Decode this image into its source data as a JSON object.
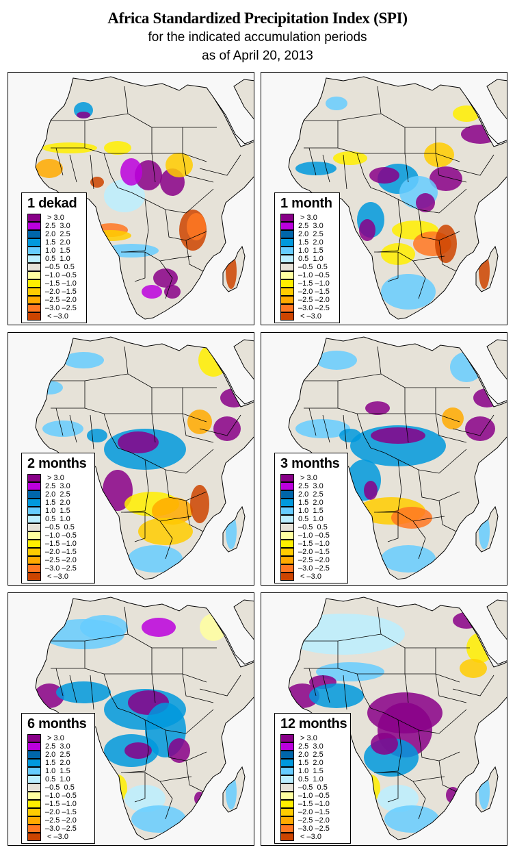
{
  "header": {
    "title": "Africa Standardized Precipitation Index (SPI)",
    "subtitle": "for the indicated accumulation periods",
    "date_line": "as of April 20, 2013"
  },
  "colors": {
    "background": "#ffffff",
    "ocean": "#f8f8f8",
    "land": "#e6e2d8",
    "border": "#000000"
  },
  "legend_scale": [
    {
      "label": " > 3.0",
      "color": "#880088"
    },
    {
      "label": "2.5  3.0",
      "color": "#bb00dd"
    },
    {
      "label": "2.0  2.5",
      "color": "#0066aa"
    },
    {
      "label": "1.5  2.0",
      "color": "#0099dd"
    },
    {
      "label": "1.0  1.5",
      "color": "#66ccff"
    },
    {
      "label": "0.5  1.0",
      "color": "#bbeeff"
    },
    {
      "label": "–0.5  0.5",
      "color": "#e6e2d8"
    },
    {
      "label": "–1.0 –0.5",
      "color": "#ffffa0"
    },
    {
      "label": "–1.5 –1.0",
      "color": "#ffee00"
    },
    {
      "label": "–2.0 –1.5",
      "color": "#ffcc00"
    },
    {
      "label": "–2.5 –2.0",
      "color": "#ffaa00"
    },
    {
      "label": "–3.0 –2.5",
      "color": "#ff7722"
    },
    {
      "label": " < –3.0",
      "color": "#cc4400"
    }
  ],
  "panels": [
    {
      "id": "1-dekad",
      "label": "1 dekad",
      "dominant": "mixed wet/dry; dry in Angola, Mozambique, Madagascar; wet in East Africa and South Africa"
    },
    {
      "id": "1-month",
      "label": "1 month",
      "dominant": "wet in Congo Basin and Horn; very dry in Mozambique, Zimbabwe, Zambia, Madagascar"
    },
    {
      "id": "2-months",
      "label": "2 months",
      "dominant": "wet central Africa; dry in southern Africa"
    },
    {
      "id": "3-months",
      "label": "3 months",
      "dominant": "wet central/east Africa; dry Namibia-Botswana-Zimbabwe"
    },
    {
      "id": "6-months",
      "label": "6 months",
      "dominant": "widespread wet central and west Africa"
    },
    {
      "id": "12-months",
      "label": "12 months",
      "dominant": "very wet Congo Basin and West Africa coast; dry Arabia"
    }
  ]
}
